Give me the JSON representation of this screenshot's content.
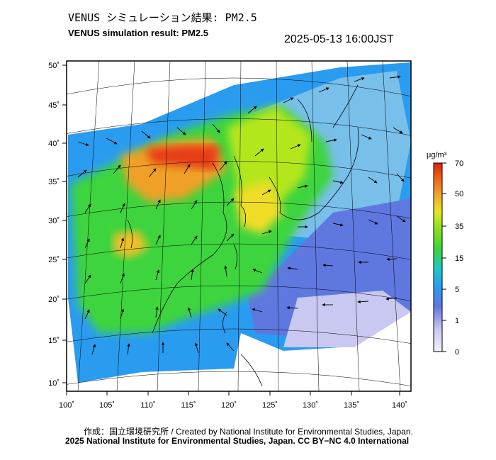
{
  "header": {
    "title_jp": "VENUS シミュレーション結果: PM2.5",
    "title_en": "VENUS simulation result: PM2.5",
    "timestamp": "2025-05-13 16:00JST"
  },
  "map": {
    "lon_ticks": [
      "100˚",
      "105˚",
      "110˚",
      "115˚",
      "120˚",
      "125˚",
      "130˚",
      "135˚",
      "140˚"
    ],
    "lat_ticks": [
      "50˚",
      "45˚",
      "40˚",
      "35˚",
      "30˚",
      "25˚",
      "20˚",
      "15˚",
      "10˚"
    ]
  },
  "colorbar": {
    "unit": "μg/m³",
    "ticks": [
      "70",
      "50",
      "35",
      "15",
      "5",
      "1",
      "0"
    ],
    "colors": [
      "#dcdcf5",
      "#5f78e0",
      "#2a9cf0",
      "#20d0c0",
      "#3cd43c",
      "#b4e61e",
      "#f0dc28",
      "#f0a028",
      "#f05a14",
      "#dc1e14"
    ]
  },
  "footer": {
    "credit_line1": "作成：国立環境研究所 / Created by National Institute for Environmental Studies, Japan.",
    "credit_line2": "2025 National Institute for Environmental Studies, Japan. CC BY−NC 4.0 International"
  }
}
